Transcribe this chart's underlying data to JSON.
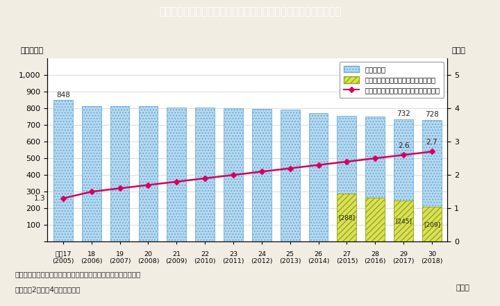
{
  "title": "Ｉ－４－７図　消防本部数及び消防吏員に占める女性の割合の推移",
  "title_bg_color": "#00b8cc",
  "title_text_color": "#ffffff",
  "background_color": "#f2ede3",
  "plot_bg_color": "#ffffff",
  "total_bars": [
    848,
    813,
    813,
    811,
    802,
    802,
    799,
    797,
    790,
    770,
    752,
    748,
    732,
    728
  ],
  "yellow_bars": [
    0,
    0,
    0,
    0,
    0,
    0,
    0,
    0,
    0,
    0,
    288,
    265,
    245,
    209
  ],
  "yellow_labels": [
    "",
    "",
    "",
    "",
    "",
    "",
    "",
    "",
    "",
    "",
    "[288]",
    "",
    "[245]",
    "[209]"
  ],
  "line_values": [
    1.3,
    1.5,
    1.6,
    1.7,
    1.8,
    1.9,
    2.0,
    2.1,
    2.2,
    2.3,
    2.4,
    2.5,
    2.6,
    2.7
  ],
  "bar_top_labels": [
    "848",
    "",
    "",
    "",
    "",
    "",
    "",
    "",
    "",
    "",
    "",
    "",
    "732",
    "728"
  ],
  "bar_color": "#b8d9f0",
  "bar_hatch_color": "#6aaed6",
  "yellow_color": "#d9e060",
  "yellow_hatch_color": "#9aaa00",
  "line_color": "#d40060",
  "ylim_left": [
    0,
    1100
  ],
  "ylim_right": [
    0,
    5.5
  ],
  "yticks_left": [
    0,
    100,
    200,
    300,
    400,
    500,
    600,
    700,
    800,
    900,
    1000
  ],
  "yticks_right": [
    0,
    1,
    2,
    3,
    4,
    5
  ],
  "tick_labels_top": [
    "平成17",
    "18",
    "19",
    "20",
    "21",
    "22",
    "23",
    "24",
    "25",
    "26",
    "27",
    "28",
    "29",
    "30"
  ],
  "tick_labels_bot": [
    "(2005)",
    "(2006)",
    "(2007)",
    "(2008)",
    "(2009)",
    "(2010)",
    "(2011)",
    "(2012)",
    "(2013)",
    "(2014)",
    "(2015)",
    "(2016)",
    "(2017)",
    "(2018)"
  ],
  "ylabel_left": "（本部数）",
  "ylabel_right": "（％）",
  "xlabel": "（年）",
  "footer_line1": "（備考）１．消防庁「消防防災・震災対策現況調査」より作成。",
  "footer_line2": "　　　　2．各年4月１日現在。",
  "legend_l1": "消防本部数",
  "legend_l2": "うち女性消防吏員がいない消防本部数",
  "legend_l3": "消防吏員に占める女性の割合（右目盛）"
}
